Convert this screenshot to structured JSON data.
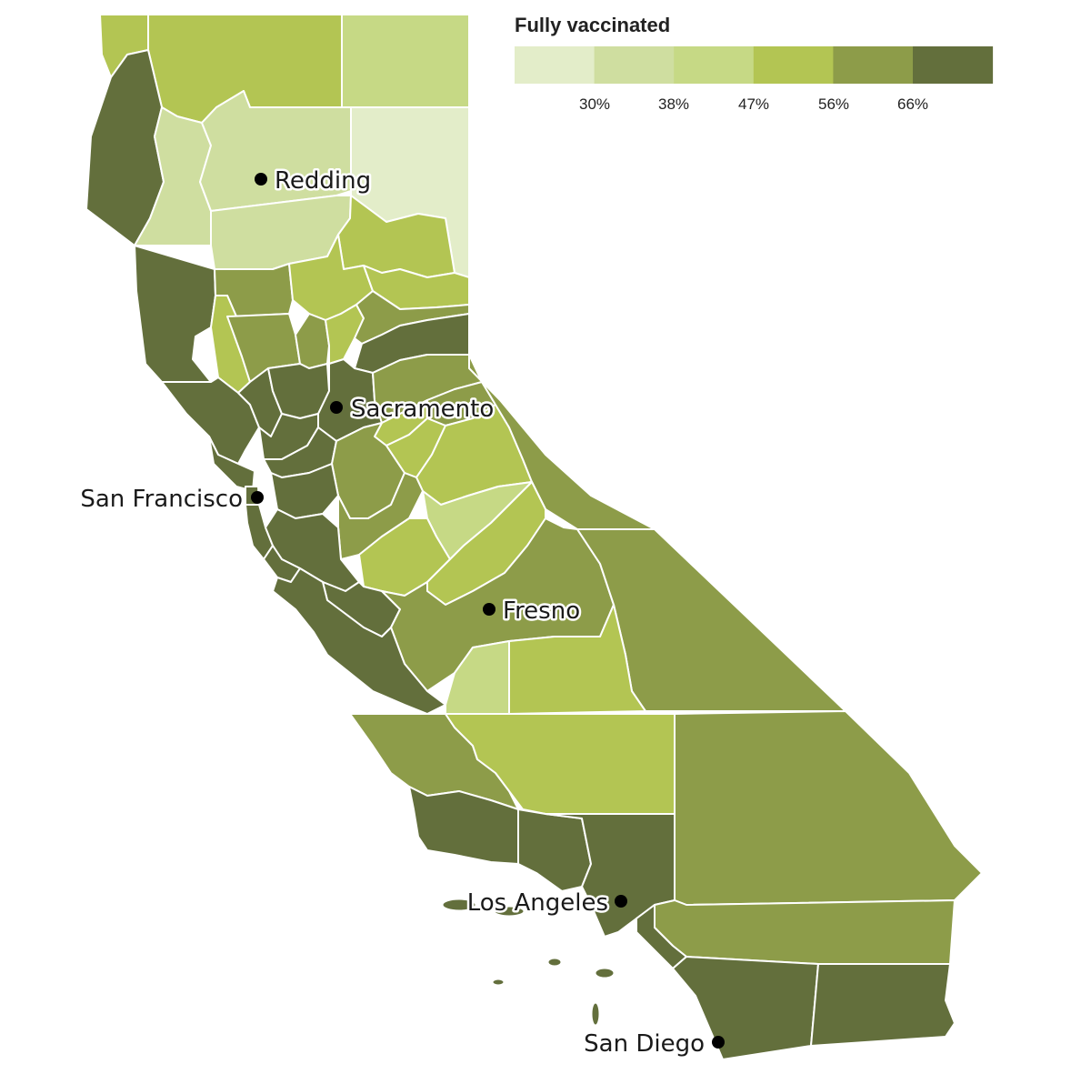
{
  "legend": {
    "title": "Fully vaccinated",
    "colors": [
      "#e3edc9",
      "#cfdea0",
      "#c6d985",
      "#b3c553",
      "#8d9c49",
      "#636f3c"
    ],
    "ticks": [
      "30%",
      "38%",
      "47%",
      "56%",
      "66%"
    ]
  },
  "cities": [
    {
      "name": "Redding"
    },
    {
      "name": "Sacramento"
    },
    {
      "name": "San Francisco"
    },
    {
      "name": "Fresno"
    },
    {
      "name": "Los Angeles"
    },
    {
      "name": "San Diego"
    }
  ],
  "counties": [
    {
      "id": "del-norte",
      "class": 3
    },
    {
      "id": "siskiyou",
      "class": 3
    },
    {
      "id": "modoc",
      "class": 2
    },
    {
      "id": "humboldt",
      "class": 5
    },
    {
      "id": "trinity",
      "class": 1
    },
    {
      "id": "shasta",
      "class": 1
    },
    {
      "id": "lassen",
      "class": 0
    },
    {
      "id": "tehama",
      "class": 1
    },
    {
      "id": "plumas",
      "class": 3
    },
    {
      "id": "mendocino",
      "class": 5
    },
    {
      "id": "glenn",
      "class": 4
    },
    {
      "id": "butte",
      "class": 3
    },
    {
      "id": "sierra",
      "class": 3
    },
    {
      "id": "lake",
      "class": 3
    },
    {
      "id": "colusa",
      "class": 4
    },
    {
      "id": "sutter",
      "class": 4
    },
    {
      "id": "yuba",
      "class": 3
    },
    {
      "id": "nevada",
      "class": 4
    },
    {
      "id": "placer",
      "class": 5
    },
    {
      "id": "sonoma",
      "class": 5
    },
    {
      "id": "napa",
      "class": 5
    },
    {
      "id": "yolo",
      "class": 5
    },
    {
      "id": "sacramento",
      "class": 5
    },
    {
      "id": "el-dorado",
      "class": 4
    },
    {
      "id": "amador",
      "class": 3
    },
    {
      "id": "alpine",
      "class": 4
    },
    {
      "id": "marin",
      "class": 5
    },
    {
      "id": "solano",
      "class": 5
    },
    {
      "id": "contra-costa",
      "class": 5
    },
    {
      "id": "san-francisco",
      "class": 5
    },
    {
      "id": "san-joaquin",
      "class": 4
    },
    {
      "id": "calaveras",
      "class": 3
    },
    {
      "id": "tuolumne",
      "class": 3
    },
    {
      "id": "mono",
      "class": 4
    },
    {
      "id": "san-mateo",
      "class": 5
    },
    {
      "id": "alameda",
      "class": 5
    },
    {
      "id": "stanislaus",
      "class": 4
    },
    {
      "id": "mariposa",
      "class": 2
    },
    {
      "id": "santa-clara",
      "class": 5
    },
    {
      "id": "santa-cruz",
      "class": 5
    },
    {
      "id": "merced",
      "class": 3
    },
    {
      "id": "madera",
      "class": 3
    },
    {
      "id": "san-benito",
      "class": 5
    },
    {
      "id": "fresno",
      "class": 4
    },
    {
      "id": "inyo",
      "class": 4
    },
    {
      "id": "monterey",
      "class": 5
    },
    {
      "id": "kings",
      "class": 2
    },
    {
      "id": "tulare",
      "class": 3
    },
    {
      "id": "san-luis-obispo",
      "class": 4
    },
    {
      "id": "kern",
      "class": 3
    },
    {
      "id": "san-bernardino",
      "class": 4
    },
    {
      "id": "santa-barbara",
      "class": 5
    },
    {
      "id": "ventura",
      "class": 5
    },
    {
      "id": "los-angeles",
      "class": 5
    },
    {
      "id": "riverside",
      "class": 4
    },
    {
      "id": "orange",
      "class": 5
    },
    {
      "id": "san-diego",
      "class": 5
    },
    {
      "id": "imperial",
      "class": 5
    },
    {
      "id": "channel-islands",
      "class": 5
    }
  ]
}
